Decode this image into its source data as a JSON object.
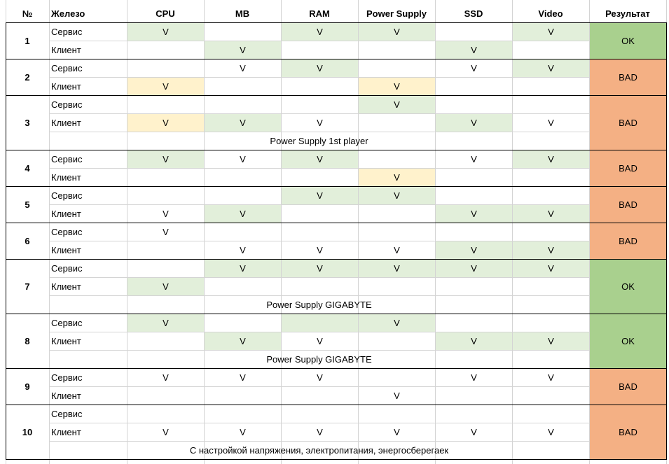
{
  "colors": {
    "green_fill": "#e2efda",
    "yellow_fill": "#fff2cc",
    "ok_fill": "#a9d08e",
    "bad_fill": "#f4b084",
    "grid": "#d4d4d4",
    "border": "#000000"
  },
  "headers": [
    "№",
    "Железо",
    "CPU",
    "MB",
    "RAM",
    "Power Supply",
    "SSD",
    "Video",
    "Результат"
  ],
  "rows": [
    {
      "n": "1",
      "result": "OK",
      "result_type": "ok",
      "server": [
        "V",
        "",
        "V",
        "V",
        "",
        "V"
      ],
      "server_fill": [
        "g",
        "",
        "g",
        "g",
        "",
        "g"
      ],
      "client": [
        "",
        "V",
        "",
        "",
        "V",
        ""
      ],
      "client_fill": [
        "",
        "g",
        "",
        "",
        "g",
        ""
      ],
      "note": ""
    },
    {
      "n": "2",
      "result": "BAD",
      "result_type": "bad",
      "server": [
        "",
        "V",
        "V",
        "",
        "V",
        "V"
      ],
      "server_fill": [
        "",
        "",
        "g",
        "",
        "",
        "g"
      ],
      "client": [
        "V",
        "",
        "",
        "V",
        "",
        ""
      ],
      "client_fill": [
        "y",
        "",
        "",
        "y",
        "",
        ""
      ],
      "note": ""
    },
    {
      "n": "3",
      "result": "BAD",
      "result_type": "bad",
      "server": [
        "",
        "",
        "",
        "V",
        "",
        ""
      ],
      "server_fill": [
        "",
        "",
        "",
        "g",
        "",
        ""
      ],
      "client": [
        "V",
        "V",
        "V",
        "",
        "V",
        "V"
      ],
      "client_fill": [
        "y",
        "g",
        "",
        "",
        "g",
        ""
      ],
      "note": "Power Supply 1st player"
    },
    {
      "n": "4",
      "result": "BAD",
      "result_type": "bad",
      "server": [
        "V",
        "V",
        "V",
        "",
        "V",
        "V"
      ],
      "server_fill": [
        "g",
        "",
        "g",
        "",
        "",
        "g"
      ],
      "client": [
        "",
        "",
        "",
        "V",
        "",
        ""
      ],
      "client_fill": [
        "",
        "",
        "",
        "y",
        "",
        ""
      ],
      "note": ""
    },
    {
      "n": "5",
      "result": "BAD",
      "result_type": "bad",
      "server": [
        "",
        "",
        "V",
        "V",
        "",
        ""
      ],
      "server_fill": [
        "",
        "",
        "g",
        "g",
        "",
        ""
      ],
      "client": [
        "V",
        "V",
        "",
        "",
        "V",
        "V"
      ],
      "client_fill": [
        "",
        "g",
        "",
        "",
        "g",
        "g"
      ],
      "note": ""
    },
    {
      "n": "6",
      "result": "BAD",
      "result_type": "bad",
      "server": [
        "V",
        "",
        "",
        "",
        "",
        ""
      ],
      "server_fill": [
        "",
        "",
        "",
        "",
        "",
        ""
      ],
      "client": [
        "",
        "V",
        "V",
        "V",
        "V",
        "V"
      ],
      "client_fill": [
        "",
        "",
        "",
        "",
        "g",
        "g"
      ],
      "note": ""
    },
    {
      "n": "7",
      "result": "OK",
      "result_type": "ok",
      "server": [
        "",
        "V",
        "V",
        "V",
        "V",
        "V"
      ],
      "server_fill": [
        "",
        "g",
        "g",
        "g",
        "g",
        "g"
      ],
      "client": [
        "V",
        "",
        "",
        "",
        "",
        ""
      ],
      "client_fill": [
        "g",
        "",
        "",
        "",
        "",
        ""
      ],
      "note": "Power Supply  GIGABYTE"
    },
    {
      "n": "8",
      "result": "OK",
      "result_type": "ok",
      "server": [
        "V",
        "",
        "",
        "V",
        "",
        ""
      ],
      "server_fill": [
        "g",
        "",
        "g",
        "g",
        "",
        ""
      ],
      "client": [
        "",
        "V",
        "V",
        "",
        "V",
        "V"
      ],
      "client_fill": [
        "",
        "g",
        "",
        "",
        "g",
        "g"
      ],
      "note": "Power Supply  GIGABYTE"
    },
    {
      "n": "9",
      "result": "BAD",
      "result_type": "bad",
      "server": [
        "V",
        "V",
        "V",
        "",
        "V",
        "V"
      ],
      "server_fill": [
        "",
        "",
        "",
        "",
        "",
        ""
      ],
      "client": [
        "",
        "",
        "",
        "V",
        "",
        ""
      ],
      "client_fill": [
        "",
        "",
        "",
        "",
        "",
        ""
      ],
      "note": ""
    },
    {
      "n": "10",
      "result": "BAD",
      "result_type": "bad",
      "server": [
        "",
        "",
        "",
        "",
        "",
        ""
      ],
      "server_fill": [
        "",
        "",
        "",
        "",
        "",
        ""
      ],
      "client": [
        "V",
        "V",
        "V",
        "V",
        "V",
        "V"
      ],
      "client_fill": [
        "",
        "",
        "",
        "",
        "",
        ""
      ],
      "note": "С настройкой напряжения, электропитания, энергосберегаек"
    }
  ],
  "labels": {
    "server": "Сервис",
    "client": "Клиент"
  }
}
